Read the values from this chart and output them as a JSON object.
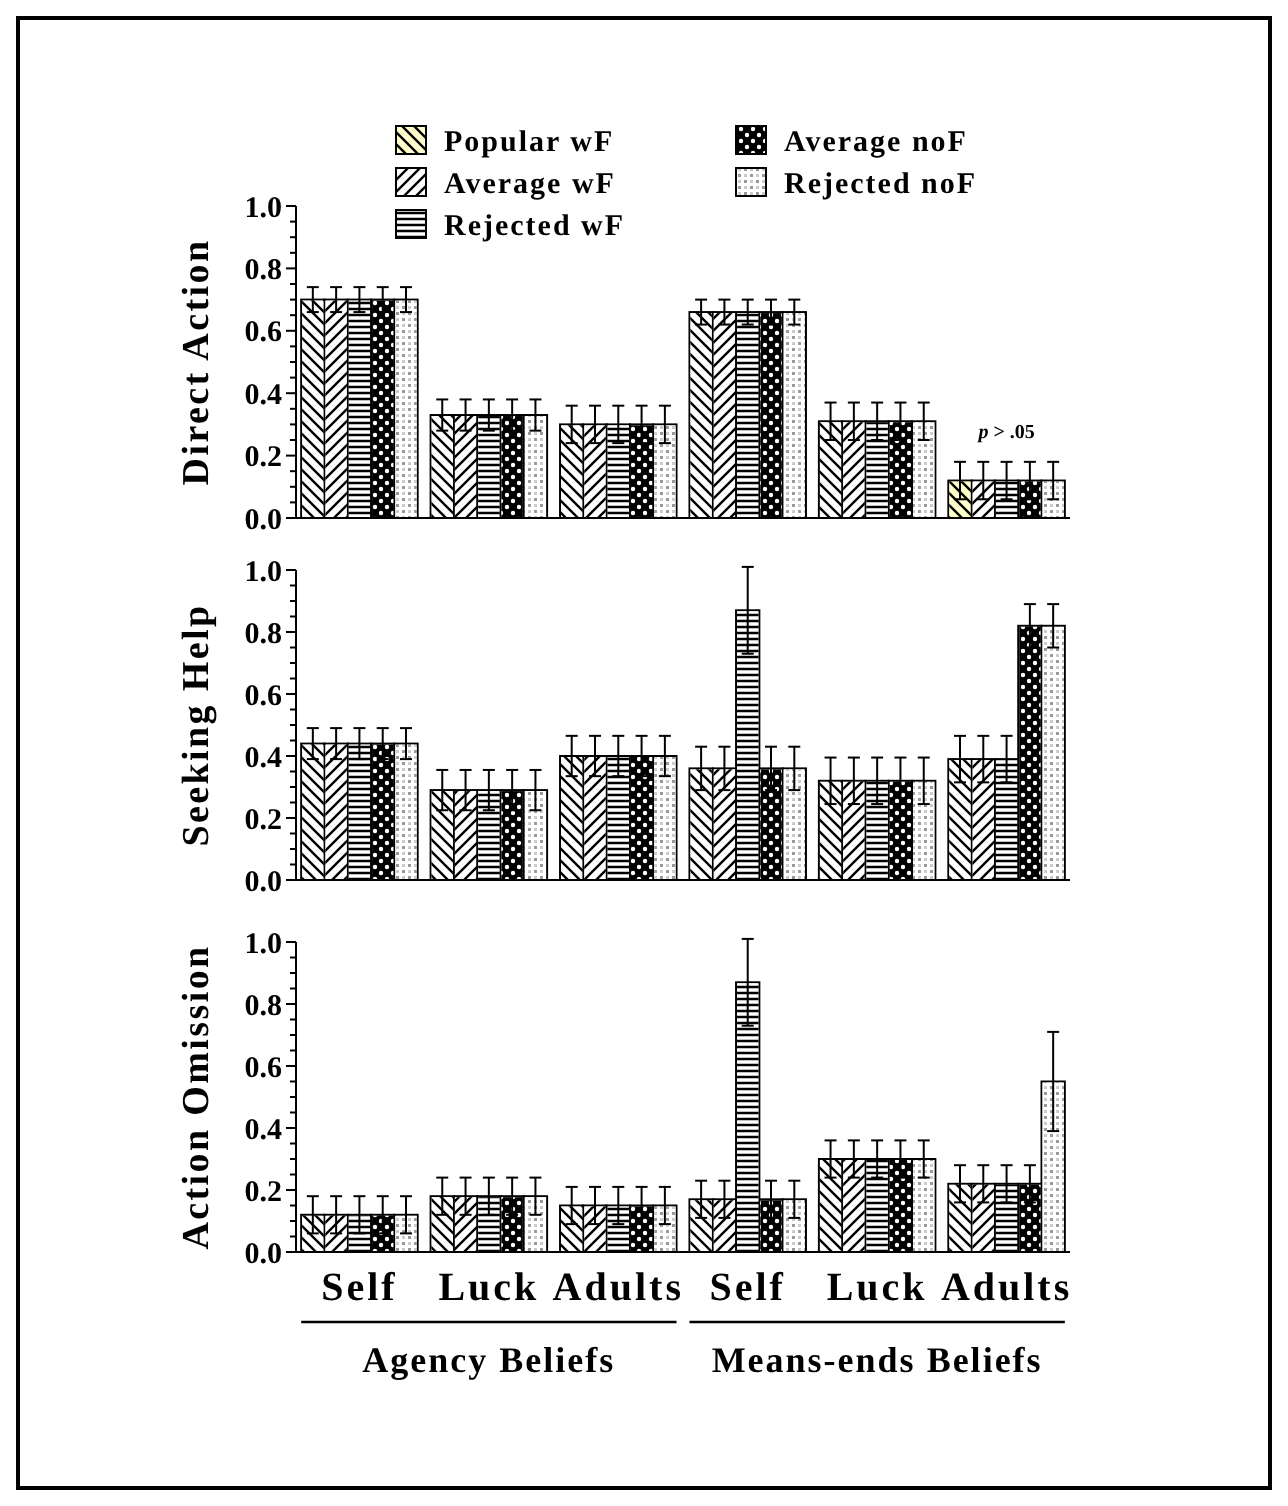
{
  "chart_data": [
    {
      "type": "bar",
      "ylabel": "Direct Action",
      "categories": [
        null,
        null,
        null,
        null,
        null,
        null
      ],
      "ylim": [
        0,
        1
      ],
      "yticks": [
        {
          "value": 0,
          "label": "0.0"
        },
        {
          "value": 0.05,
          "label": null
        },
        {
          "value": 0.1,
          "label": null
        },
        {
          "value": 0.15,
          "label": null
        },
        0.2,
        {
          "value": 0.25,
          "label": null
        },
        {
          "value": 0.3,
          "label": null
        },
        {
          "value": 0.35,
          "label": null
        },
        0.4,
        {
          "value": 0.45,
          "label": null
        },
        {
          "value": 0.5,
          "label": null
        },
        {
          "value": 0.55,
          "label": null
        },
        0.6,
        {
          "value": 0.65,
          "label": null
        },
        {
          "value": 0.7,
          "label": null
        },
        {
          "value": 0.75,
          "label": null
        },
        0.8,
        {
          "value": 0.85,
          "label": null
        },
        {
          "value": 0.9,
          "label": null
        },
        {
          "value": 0.95,
          "label": null
        },
        {
          "value": 1,
          "label": "1.0"
        }
      ],
      "tick_labels": "y",
      "legend": "top",
      "grid": false,
      "annotations": [
        "p > .05"
      ],
      "series": [
        {
          "name": "Popular wF",
          "color": "#ffffcc",
          "colors": [
            "#ffffff",
            "#ffffff",
            "#ffffff",
            "#ffffff",
            "#ffffff",
            "#ffffcc"
          ],
          "values": [
            0.7,
            0.33,
            0.3,
            0.66,
            0.31,
            0.12
          ],
          "errors": [
            0.04,
            0.05,
            0.06,
            0.04,
            0.06,
            0.06
          ]
        },
        {
          "name": "Average wF",
          "color": "#ffffff",
          "values": [
            0.7,
            0.33,
            0.3,
            0.66,
            0.31,
            0.12
          ],
          "errors": [
            0.04,
            0.05,
            0.06,
            0.04,
            0.06,
            0.06
          ]
        },
        {
          "name": "Rejected wF",
          "color": "#ffffff",
          "values": [
            0.7,
            0.33,
            0.3,
            0.66,
            0.31,
            0.12
          ],
          "errors": [
            0.04,
            0.05,
            0.06,
            0.04,
            0.06,
            0.06
          ]
        },
        {
          "name": "Average noF",
          "color": "#ffffff",
          "values": [
            0.7,
            0.33,
            0.3,
            0.66,
            0.31,
            0.12
          ],
          "errors": [
            0.04,
            0.05,
            0.06,
            0.04,
            0.06,
            0.06
          ]
        },
        {
          "name": "Rejected noF",
          "color": "#ffffff",
          "values": [
            0.7,
            0.33,
            0.3,
            0.66,
            0.31,
            0.12
          ],
          "errors": [
            0.04,
            0.05,
            0.06,
            0.04,
            0.06,
            0.06
          ]
        }
      ]
    },
    {
      "type": "bar",
      "ylabel": "Seeking Help",
      "categories": [
        null,
        null,
        null,
        null,
        null,
        null
      ],
      "ylim": [
        0,
        1
      ],
      "yticks": [
        {
          "value": 0,
          "label": "0.0"
        },
        {
          "value": 0.05,
          "label": null
        },
        {
          "value": 0.1,
          "label": null
        },
        {
          "value": 0.15,
          "label": null
        },
        0.2,
        {
          "value": 0.25,
          "label": null
        },
        {
          "value": 0.3,
          "label": null
        },
        {
          "value": 0.35,
          "label": null
        },
        0.4,
        {
          "value": 0.45,
          "label": null
        },
        {
          "value": 0.5,
          "label": null
        },
        {
          "value": 0.55,
          "label": null
        },
        0.6,
        {
          "value": 0.65,
          "label": null
        },
        {
          "value": 0.7,
          "label": null
        },
        {
          "value": 0.75,
          "label": null
        },
        0.8,
        {
          "value": 0.85,
          "label": null
        },
        {
          "value": 0.9,
          "label": null
        },
        {
          "value": 0.95,
          "label": null
        },
        {
          "value": 1,
          "label": "1.0"
        }
      ],
      "tick_labels": "y",
      "grid": false,
      "series": [
        {
          "color": "#ffffff",
          "values": [
            0.44,
            0.29,
            0.4,
            0.36,
            0.32,
            0.39
          ],
          "errors": [
            0.05,
            0.065,
            0.065,
            0.07,
            0.075,
            0.075
          ]
        },
        {
          "color": "#ffffff",
          "values": [
            0.44,
            0.29,
            0.4,
            0.36,
            0.32,
            0.39
          ],
          "errors": [
            0.05,
            0.065,
            0.065,
            0.07,
            0.075,
            0.075
          ]
        },
        {
          "color": "#ffffff",
          "values": [
            0.44,
            0.29,
            0.4,
            0.87,
            0.32,
            0.39
          ],
          "errors": [
            0.05,
            0.065,
            0.065,
            0.14,
            0.075,
            0.075
          ]
        },
        {
          "color": "#ffffff",
          "values": [
            0.44,
            0.29,
            0.4,
            0.36,
            0.32,
            0.82
          ],
          "errors": [
            0.05,
            0.065,
            0.065,
            0.07,
            0.075,
            0.07
          ]
        },
        {
          "color": "#ffffff",
          "values": [
            0.44,
            0.29,
            0.4,
            0.36,
            0.32,
            0.82
          ],
          "errors": [
            0.05,
            0.065,
            0.065,
            0.07,
            0.075,
            0.07
          ]
        }
      ]
    },
    {
      "type": "bar",
      "ylabel": "Action Omission",
      "categories": [
        "Self",
        "Luck",
        "Adults",
        "Self",
        "Luck",
        "Adults"
      ],
      "ylim": [
        0,
        1
      ],
      "yticks": [
        {
          "value": 0,
          "label": "0.0"
        },
        {
          "value": 0.05,
          "label": null
        },
        {
          "value": 0.1,
          "label": null
        },
        {
          "value": 0.15,
          "label": null
        },
        0.2,
        {
          "value": 0.25,
          "label": null
        },
        {
          "value": 0.3,
          "label": null
        },
        {
          "value": 0.35,
          "label": null
        },
        0.4,
        {
          "value": 0.45,
          "label": null
        },
        {
          "value": 0.5,
          "label": null
        },
        {
          "value": 0.55,
          "label": null
        },
        0.6,
        {
          "value": 0.65,
          "label": null
        },
        {
          "value": 0.7,
          "label": null
        },
        {
          "value": 0.75,
          "label": null
        },
        0.8,
        {
          "value": 0.85,
          "label": null
        },
        {
          "value": 0.9,
          "label": null
        },
        {
          "value": 0.95,
          "label": null
        },
        {
          "value": 1,
          "label": "1.0"
        }
      ],
      "grid": false,
      "annotations": [
        "Agency Beliefs",
        "Means-ends Beliefs"
      ],
      "series": [
        {
          "color": "#ffffff",
          "values": [
            0.12,
            0.18,
            0.15,
            0.17,
            0.3,
            0.22
          ],
          "errors": [
            0.06,
            0.06,
            0.06,
            0.06,
            0.06,
            0.06
          ]
        },
        {
          "color": "#ffffff",
          "values": [
            0.12,
            0.18,
            0.15,
            0.17,
            0.3,
            0.22
          ],
          "errors": [
            0.06,
            0.06,
            0.06,
            0.06,
            0.06,
            0.06
          ]
        },
        {
          "color": "#ffffff",
          "values": [
            0.12,
            0.18,
            0.15,
            0.87,
            0.3,
            0.22
          ],
          "errors": [
            0.06,
            0.06,
            0.06,
            0.14,
            0.06,
            0.06
          ]
        },
        {
          "color": "#ffffff",
          "values": [
            0.12,
            0.18,
            0.15,
            0.17,
            0.3,
            0.22
          ],
          "errors": [
            0.06,
            0.06,
            0.06,
            0.06,
            0.06,
            0.06
          ]
        },
        {
          "color": "#ffffff",
          "values": [
            0.12,
            0.18,
            0.15,
            0.17,
            0.3,
            0.55
          ],
          "errors": [
            0.06,
            0.06,
            0.06,
            0.06,
            0.06,
            0.16
          ]
        }
      ]
    }
  ]
}
